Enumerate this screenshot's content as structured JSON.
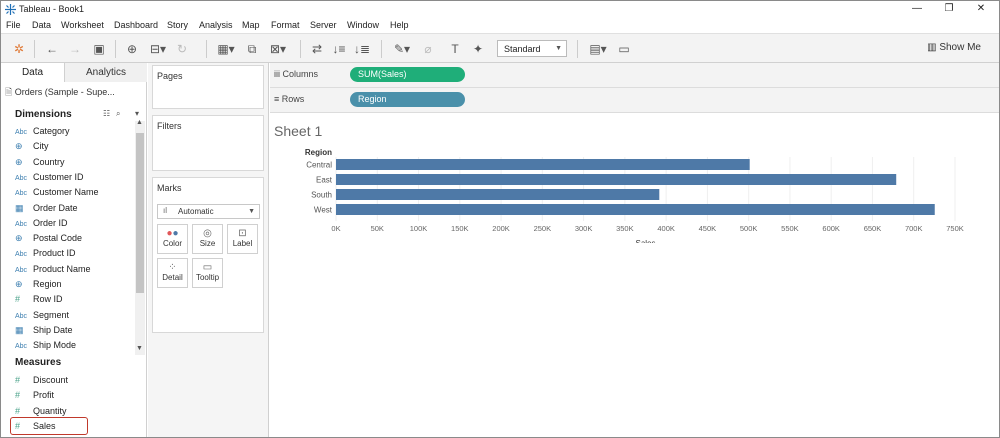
{
  "app": {
    "title": "Tableau - Book1"
  },
  "menu": [
    "File",
    "Data",
    "Worksheet",
    "Dashboard",
    "Story",
    "Analysis",
    "Map",
    "Format",
    "Server",
    "Window",
    "Help"
  ],
  "toolbar": {
    "fit_label": "Standard",
    "show_me_label": "Show Me"
  },
  "left_panel": {
    "tabs": [
      {
        "label": "Data"
      },
      {
        "label": "Analytics"
      }
    ],
    "datasource": "Orders (Sample - Supe...",
    "dimensions_header": "Dimensions",
    "dimensions": [
      {
        "icon": "Abc",
        "label": "Category"
      },
      {
        "icon": "globe",
        "label": "City"
      },
      {
        "icon": "globe",
        "label": "Country"
      },
      {
        "icon": "Abc",
        "label": "Customer ID"
      },
      {
        "icon": "Abc",
        "label": "Customer Name"
      },
      {
        "icon": "calendar",
        "label": "Order Date"
      },
      {
        "icon": "Abc",
        "label": "Order ID"
      },
      {
        "icon": "globe",
        "label": "Postal Code"
      },
      {
        "icon": "Abc",
        "label": "Product ID"
      },
      {
        "icon": "Abc",
        "label": "Product Name"
      },
      {
        "icon": "globe",
        "label": "Region"
      },
      {
        "icon": "#",
        "label": "Row ID"
      },
      {
        "icon": "Abc",
        "label": "Segment"
      },
      {
        "icon": "calendar",
        "label": "Ship Date"
      },
      {
        "icon": "Abc",
        "label": "Ship Mode"
      }
    ],
    "measures_header": "Measures",
    "measures": [
      {
        "icon": "#",
        "label": "Discount"
      },
      {
        "icon": "#",
        "label": "Profit"
      },
      {
        "icon": "#",
        "label": "Quantity"
      },
      {
        "icon": "#",
        "label": "Sales"
      }
    ]
  },
  "cards": {
    "pages": "Pages",
    "filters": "Filters",
    "marks": "Marks",
    "mark_type": "Automatic",
    "mark_buttons": [
      {
        "label": "Color"
      },
      {
        "label": "Size"
      },
      {
        "label": "Label"
      },
      {
        "label": "Detail"
      },
      {
        "label": "Tooltip"
      }
    ]
  },
  "shelves": {
    "columns_label": "Columns",
    "columns_pill": "SUM(Sales)",
    "rows_label": "Rows",
    "rows_pill": "Region"
  },
  "sheet": {
    "title": "Sheet 1"
  },
  "colors": {
    "bar": "#4e79a7",
    "pill_measure": "#1fae79",
    "pill_dimension": "#4a90aa"
  },
  "chart_data": {
    "type": "bar",
    "orientation": "horizontal",
    "row_header": "Region",
    "categories": [
      "Central",
      "East",
      "South",
      "West"
    ],
    "values": [
      501240,
      678781,
      391722,
      725458
    ],
    "xlabel": "Sales",
    "xlim": [
      0,
      750000
    ],
    "ticks": [
      "0K",
      "50K",
      "100K",
      "150K",
      "200K",
      "250K",
      "300K",
      "350K",
      "400K",
      "450K",
      "500K",
      "550K",
      "600K",
      "650K",
      "700K",
      "750K"
    ],
    "tick_values": [
      0,
      50000,
      100000,
      150000,
      200000,
      250000,
      300000,
      350000,
      400000,
      450000,
      500000,
      550000,
      600000,
      650000,
      700000,
      750000
    ],
    "grid": true
  }
}
